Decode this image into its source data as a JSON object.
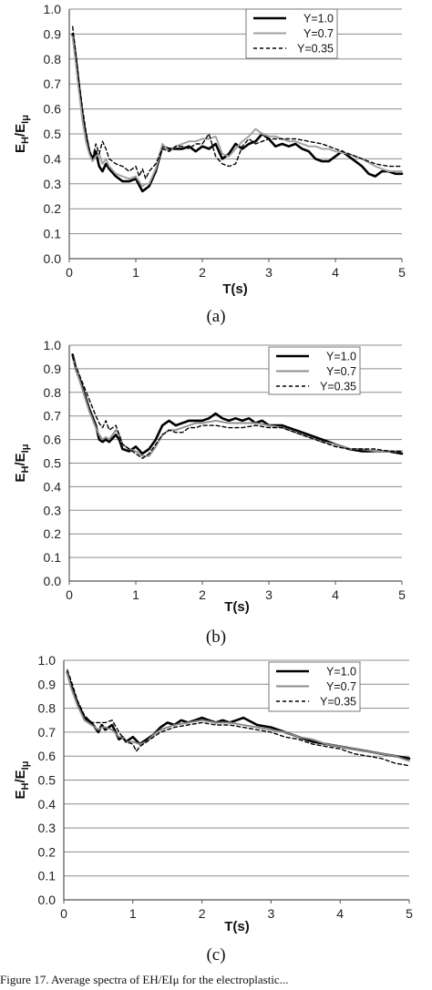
{
  "chart_data": [
    {
      "type": "line",
      "panel_label": "(a)",
      "xlabel": "T(s)",
      "ylabel": "EH/EIμ",
      "xlim": [
        0,
        5
      ],
      "ylim": [
        0,
        1
      ],
      "xticks": [
        "0",
        "1",
        "2",
        "3",
        "4",
        "5"
      ],
      "yticks": [
        "0.0",
        "0.1",
        "0.2",
        "0.3",
        "0.4",
        "0.5",
        "0.6",
        "0.7",
        "0.8",
        "0.9",
        "1.0"
      ],
      "grid": "horizontal",
      "legend": "top-right",
      "series": [
        {
          "name": "Y=1.0",
          "color": "#000000",
          "style": "solid-thick",
          "x": [
            0.05,
            0.1,
            0.15,
            0.2,
            0.25,
            0.3,
            0.35,
            0.4,
            0.45,
            0.5,
            0.55,
            0.6,
            0.7,
            0.8,
            0.9,
            1.0,
            1.1,
            1.15,
            1.2,
            1.3,
            1.4,
            1.5,
            1.6,
            1.7,
            1.8,
            1.9,
            2.0,
            2.1,
            2.2,
            2.3,
            2.4,
            2.5,
            2.6,
            2.7,
            2.8,
            2.9,
            3.0,
            3.1,
            3.2,
            3.3,
            3.4,
            3.5,
            3.6,
            3.7,
            3.8,
            3.9,
            4.0,
            4.1,
            4.2,
            4.3,
            4.4,
            4.5,
            4.6,
            4.7,
            4.8,
            4.9,
            5.0
          ],
          "y": [
            0.9,
            0.8,
            0.68,
            0.57,
            0.49,
            0.43,
            0.4,
            0.43,
            0.37,
            0.35,
            0.38,
            0.36,
            0.33,
            0.31,
            0.31,
            0.32,
            0.27,
            0.28,
            0.29,
            0.35,
            0.45,
            0.44,
            0.44,
            0.44,
            0.45,
            0.43,
            0.45,
            0.44,
            0.46,
            0.4,
            0.42,
            0.46,
            0.44,
            0.46,
            0.47,
            0.5,
            0.48,
            0.45,
            0.46,
            0.45,
            0.46,
            0.44,
            0.43,
            0.4,
            0.39,
            0.39,
            0.41,
            0.43,
            0.41,
            0.39,
            0.37,
            0.34,
            0.33,
            0.35,
            0.35,
            0.34,
            0.34
          ]
        },
        {
          "name": "Y=0.7",
          "color": "#a0a0a0",
          "style": "solid",
          "x": [
            0.05,
            0.1,
            0.15,
            0.2,
            0.25,
            0.3,
            0.35,
            0.4,
            0.45,
            0.5,
            0.55,
            0.6,
            0.7,
            0.8,
            0.9,
            1.0,
            1.1,
            1.15,
            1.2,
            1.3,
            1.4,
            1.5,
            1.6,
            1.7,
            1.8,
            1.9,
            2.0,
            2.1,
            2.2,
            2.3,
            2.4,
            2.5,
            2.6,
            2.7,
            2.8,
            2.9,
            3.0,
            3.1,
            3.2,
            3.3,
            3.4,
            3.5,
            3.6,
            3.7,
            3.8,
            3.9,
            4.0,
            4.2,
            4.4,
            4.6,
            4.8,
            5.0
          ],
          "y": [
            0.89,
            0.78,
            0.66,
            0.55,
            0.47,
            0.42,
            0.39,
            0.41,
            0.42,
            0.38,
            0.4,
            0.37,
            0.34,
            0.33,
            0.32,
            0.33,
            0.29,
            0.3,
            0.3,
            0.36,
            0.46,
            0.43,
            0.45,
            0.46,
            0.47,
            0.47,
            0.48,
            0.48,
            0.49,
            0.42,
            0.41,
            0.44,
            0.47,
            0.49,
            0.52,
            0.5,
            0.49,
            0.49,
            0.48,
            0.47,
            0.47,
            0.46,
            0.45,
            0.45,
            0.44,
            0.44,
            0.43,
            0.42,
            0.4,
            0.37,
            0.35,
            0.35
          ]
        },
        {
          "name": "Y=0.35",
          "color": "#000000",
          "style": "dashed",
          "x": [
            0.05,
            0.1,
            0.15,
            0.2,
            0.25,
            0.3,
            0.35,
            0.4,
            0.45,
            0.5,
            0.55,
            0.6,
            0.7,
            0.8,
            0.9,
            1.0,
            1.05,
            1.1,
            1.15,
            1.2,
            1.3,
            1.4,
            1.5,
            1.6,
            1.7,
            1.8,
            1.9,
            2.0,
            2.1,
            2.2,
            2.3,
            2.4,
            2.5,
            2.6,
            2.7,
            2.8,
            2.9,
            3.0,
            3.2,
            3.4,
            3.6,
            3.8,
            4.0,
            4.2,
            4.4,
            4.6,
            4.8,
            5.0
          ],
          "y": [
            0.93,
            0.82,
            0.7,
            0.6,
            0.51,
            0.44,
            0.4,
            0.46,
            0.42,
            0.47,
            0.44,
            0.4,
            0.38,
            0.37,
            0.35,
            0.37,
            0.33,
            0.36,
            0.32,
            0.35,
            0.38,
            0.44,
            0.43,
            0.45,
            0.45,
            0.44,
            0.46,
            0.46,
            0.5,
            0.41,
            0.38,
            0.37,
            0.38,
            0.45,
            0.48,
            0.46,
            0.47,
            0.48,
            0.48,
            0.48,
            0.47,
            0.46,
            0.44,
            0.42,
            0.4,
            0.38,
            0.37,
            0.37
          ]
        }
      ]
    },
    {
      "type": "line",
      "panel_label": "(b)",
      "xlabel": "T(s)",
      "ylabel": "EH/EIμ",
      "xlim": [
        0,
        5
      ],
      "ylim": [
        0,
        1
      ],
      "xticks": [
        "0",
        "1",
        "2",
        "3",
        "4",
        "5"
      ],
      "yticks": [
        "0.0",
        "0.1",
        "0.2",
        "0.3",
        "0.4",
        "0.5",
        "0.6",
        "0.7",
        "0.8",
        "0.9",
        "1.0"
      ],
      "grid": "horizontal",
      "legend": "top-right",
      "series": [
        {
          "name": "Y=1.0",
          "color": "#000000",
          "style": "solid-thick",
          "x": [
            0.05,
            0.1,
            0.2,
            0.3,
            0.4,
            0.45,
            0.5,
            0.55,
            0.6,
            0.7,
            0.75,
            0.8,
            0.9,
            1.0,
            1.1,
            1.2,
            1.3,
            1.4,
            1.5,
            1.6,
            1.7,
            1.8,
            1.9,
            2.0,
            2.1,
            2.2,
            2.3,
            2.4,
            2.5,
            2.6,
            2.7,
            2.8,
            2.9,
            3.0,
            3.2,
            3.4,
            3.6,
            3.8,
            4.0,
            4.2,
            4.4,
            4.6,
            4.8,
            5.0
          ],
          "y": [
            0.96,
            0.9,
            0.82,
            0.73,
            0.66,
            0.6,
            0.59,
            0.6,
            0.59,
            0.62,
            0.6,
            0.56,
            0.55,
            0.57,
            0.54,
            0.56,
            0.6,
            0.66,
            0.68,
            0.66,
            0.67,
            0.68,
            0.68,
            0.68,
            0.69,
            0.71,
            0.69,
            0.68,
            0.69,
            0.68,
            0.69,
            0.67,
            0.68,
            0.66,
            0.66,
            0.64,
            0.62,
            0.6,
            0.58,
            0.56,
            0.55,
            0.55,
            0.55,
            0.54
          ]
        },
        {
          "name": "Y=0.7",
          "color": "#909090",
          "style": "solid",
          "x": [
            0.05,
            0.1,
            0.2,
            0.3,
            0.4,
            0.45,
            0.5,
            0.55,
            0.6,
            0.7,
            0.75,
            0.8,
            0.9,
            1.0,
            1.1,
            1.2,
            1.3,
            1.4,
            1.5,
            1.6,
            1.7,
            1.8,
            1.9,
            2.0,
            2.2,
            2.4,
            2.6,
            2.8,
            3.0,
            3.2,
            3.4,
            3.6,
            3.8,
            4.0,
            4.2,
            4.4,
            4.6,
            4.8,
            5.0
          ],
          "y": [
            0.95,
            0.9,
            0.81,
            0.72,
            0.65,
            0.62,
            0.6,
            0.61,
            0.6,
            0.64,
            0.62,
            0.58,
            0.56,
            0.55,
            0.53,
            0.53,
            0.57,
            0.62,
            0.64,
            0.64,
            0.65,
            0.66,
            0.67,
            0.67,
            0.68,
            0.67,
            0.67,
            0.67,
            0.66,
            0.65,
            0.63,
            0.61,
            0.59,
            0.58,
            0.56,
            0.56,
            0.55,
            0.55,
            0.55
          ]
        },
        {
          "name": "Y=0.35",
          "color": "#000000",
          "style": "dashed",
          "x": [
            0.05,
            0.1,
            0.2,
            0.3,
            0.4,
            0.45,
            0.5,
            0.55,
            0.6,
            0.7,
            0.75,
            0.8,
            0.9,
            1.0,
            1.1,
            1.2,
            1.3,
            1.4,
            1.5,
            1.6,
            1.7,
            1.8,
            1.9,
            2.0,
            2.2,
            2.4,
            2.6,
            2.8,
            3.0,
            3.2,
            3.4,
            3.6,
            3.8,
            4.0,
            4.2,
            4.4,
            4.6,
            4.8,
            5.0
          ],
          "y": [
            0.95,
            0.91,
            0.84,
            0.77,
            0.7,
            0.67,
            0.65,
            0.68,
            0.64,
            0.66,
            0.62,
            0.58,
            0.56,
            0.54,
            0.52,
            0.54,
            0.58,
            0.62,
            0.64,
            0.63,
            0.63,
            0.65,
            0.65,
            0.66,
            0.66,
            0.65,
            0.65,
            0.66,
            0.65,
            0.65,
            0.63,
            0.61,
            0.59,
            0.57,
            0.56,
            0.56,
            0.56,
            0.55,
            0.55
          ]
        }
      ]
    },
    {
      "type": "line",
      "panel_label": "(c)",
      "xlabel": "T(s)",
      "ylabel": "EH/EIμ",
      "xlim": [
        0,
        5
      ],
      "ylim": [
        0,
        1
      ],
      "xticks": [
        "0",
        "1",
        "2",
        "3",
        "4",
        "5"
      ],
      "yticks": [
        "0.0",
        "0.1",
        "0.2",
        "0.3",
        "0.4",
        "0.5",
        "0.6",
        "0.7",
        "0.8",
        "0.9",
        "1.0"
      ],
      "grid": "horizontal",
      "legend": "top-right",
      "series": [
        {
          "name": "Y=1.0",
          "color": "#000000",
          "style": "solid-thick",
          "x": [
            0.05,
            0.1,
            0.2,
            0.3,
            0.4,
            0.5,
            0.55,
            0.6,
            0.7,
            0.8,
            0.85,
            0.9,
            1.0,
            1.1,
            1.2,
            1.3,
            1.4,
            1.5,
            1.6,
            1.7,
            1.8,
            1.9,
            2.0,
            2.1,
            2.2,
            2.3,
            2.4,
            2.5,
            2.6,
            2.8,
            3.0,
            3.2,
            3.4,
            3.6,
            3.8,
            4.0,
            4.2,
            4.4,
            4.6,
            4.8,
            5.0
          ],
          "y": [
            0.95,
            0.9,
            0.82,
            0.76,
            0.74,
            0.7,
            0.73,
            0.71,
            0.73,
            0.67,
            0.68,
            0.66,
            0.68,
            0.65,
            0.67,
            0.69,
            0.72,
            0.74,
            0.73,
            0.75,
            0.74,
            0.75,
            0.76,
            0.75,
            0.74,
            0.75,
            0.74,
            0.75,
            0.76,
            0.73,
            0.72,
            0.7,
            0.68,
            0.66,
            0.65,
            0.64,
            0.63,
            0.62,
            0.61,
            0.6,
            0.59
          ]
        },
        {
          "name": "Y=0.7",
          "color": "#8a8a8a",
          "style": "solid",
          "x": [
            0.05,
            0.1,
            0.2,
            0.3,
            0.4,
            0.5,
            0.55,
            0.6,
            0.7,
            0.8,
            0.85,
            0.9,
            1.0,
            1.1,
            1.2,
            1.3,
            1.4,
            1.5,
            1.6,
            1.8,
            2.0,
            2.2,
            2.4,
            2.6,
            2.8,
            3.0,
            3.2,
            3.4,
            3.6,
            3.8,
            4.0,
            4.2,
            4.4,
            4.6,
            4.8,
            5.0
          ],
          "y": [
            0.95,
            0.89,
            0.81,
            0.75,
            0.73,
            0.71,
            0.72,
            0.72,
            0.71,
            0.68,
            0.68,
            0.66,
            0.66,
            0.65,
            0.66,
            0.69,
            0.71,
            0.72,
            0.73,
            0.74,
            0.75,
            0.74,
            0.74,
            0.73,
            0.72,
            0.71,
            0.7,
            0.68,
            0.67,
            0.65,
            0.64,
            0.63,
            0.62,
            0.61,
            0.6,
            0.58
          ]
        },
        {
          "name": "Y=0.35",
          "color": "#000000",
          "style": "dashed",
          "x": [
            0.05,
            0.1,
            0.2,
            0.3,
            0.4,
            0.5,
            0.6,
            0.7,
            0.8,
            0.9,
            1.0,
            1.05,
            1.1,
            1.2,
            1.3,
            1.4,
            1.5,
            1.6,
            1.8,
            2.0,
            2.2,
            2.4,
            2.6,
            2.8,
            3.0,
            3.2,
            3.4,
            3.6,
            3.8,
            4.0,
            4.2,
            4.4,
            4.6,
            4.8,
            5.0
          ],
          "y": [
            0.96,
            0.92,
            0.83,
            0.77,
            0.74,
            0.74,
            0.74,
            0.75,
            0.7,
            0.66,
            0.65,
            0.62,
            0.64,
            0.66,
            0.68,
            0.7,
            0.71,
            0.72,
            0.73,
            0.74,
            0.73,
            0.73,
            0.72,
            0.71,
            0.7,
            0.68,
            0.67,
            0.65,
            0.64,
            0.63,
            0.61,
            0.6,
            0.59,
            0.57,
            0.56
          ]
        }
      ]
    }
  ],
  "caption": "Figure 17. Average spectra of EH/EIμ for the electroplastic..."
}
